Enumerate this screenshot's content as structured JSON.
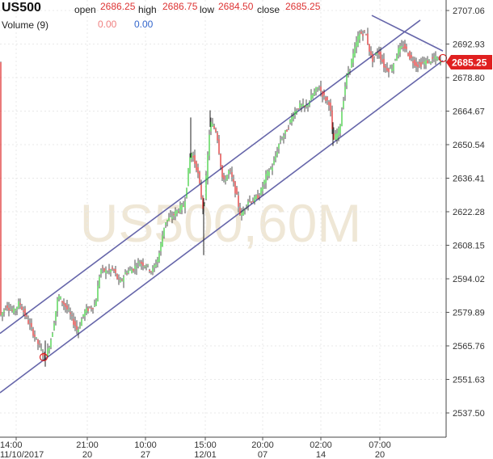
{
  "header": {
    "symbol": "US500",
    "volume_label": "Volume (9)",
    "open_label": "open",
    "open_value": "2686.25",
    "high_label": "high",
    "high_value": "2686.75",
    "low_label": "low",
    "low_value": "2684.50",
    "close_label": "close",
    "close_value": "2685.25",
    "volume_value_1": "0.00",
    "volume_value_2": "0.00"
  },
  "watermark": "US500,60M",
  "current_price_label": "2685.25",
  "colors": {
    "up": "#33cc33",
    "down": "#dd2222",
    "wick": "#222222",
    "trendline": "#6666aa",
    "price_tag": "#e02020",
    "watermark": "#efe7d6",
    "header_value": "#dd3333",
    "volume_zero": "#f08080",
    "volume_blue": "#3366cc"
  },
  "chart_data": {
    "type": "candlestick",
    "y_ticks": [
      2537.5,
      2551.63,
      2565.76,
      2579.89,
      2594.02,
      2608.15,
      2622.28,
      2636.41,
      2650.54,
      2664.67,
      2678.8,
      2692.93,
      2707.06
    ],
    "y_tick_labels": [
      "2537.50",
      "2551.63",
      "2565.76",
      "2579.89",
      "2594.02",
      "2608.15",
      "2622.28",
      "2636.41",
      "2650.54",
      "2664.67",
      "2678.80",
      "2692.93",
      "2707.06"
    ],
    "ylim": [
      2530,
      2713
    ],
    "x_ticks": [
      {
        "time": "11/10/2017 14:00",
        "label_top": "14:00",
        "label_bottom": "11/10/2017"
      },
      {
        "time": "11/20 21:00",
        "label_top": "21:00",
        "label_bottom": "20"
      },
      {
        "time": "11/27 10:00",
        "label_top": "10:00",
        "label_bottom": "27"
      },
      {
        "time": "12/01 15:00",
        "label_top": "15:00",
        "label_bottom": "12/01"
      },
      {
        "time": "12/07 20:00",
        "label_top": "20:00",
        "label_bottom": "07"
      },
      {
        "time": "12/14 02:00",
        "label_top": "02:00",
        "label_bottom": "14"
      },
      {
        "time": "12/20 07:00",
        "label_top": "07:00",
        "label_bottom": "20"
      }
    ],
    "price_path": [
      [
        0,
        2578
      ],
      [
        8,
        2583
      ],
      [
        16,
        2580
      ],
      [
        24,
        2584
      ],
      [
        32,
        2578
      ],
      [
        40,
        2572
      ],
      [
        48,
        2566
      ],
      [
        56,
        2560
      ],
      [
        64,
        2570
      ],
      [
        72,
        2587
      ],
      [
        80,
        2583
      ],
      [
        88,
        2578
      ],
      [
        96,
        2572
      ],
      [
        104,
        2580
      ],
      [
        112,
        2582
      ],
      [
        118,
        2583
      ],
      [
        124,
        2598
      ],
      [
        132,
        2597
      ],
      [
        140,
        2598
      ],
      [
        148,
        2592
      ],
      [
        156,
        2597
      ],
      [
        164,
        2598
      ],
      [
        172,
        2601
      ],
      [
        180,
        2600
      ],
      [
        188,
        2597
      ],
      [
        196,
        2603
      ],
      [
        204,
        2618
      ],
      [
        212,
        2620
      ],
      [
        220,
        2623
      ],
      [
        228,
        2625
      ],
      [
        236,
        2648
      ],
      [
        244,
        2640
      ],
      [
        252,
        2622
      ],
      [
        260,
        2660
      ],
      [
        268,
        2656
      ],
      [
        276,
        2634
      ],
      [
        284,
        2640
      ],
      [
        292,
        2630
      ],
      [
        298,
        2620
      ],
      [
        306,
        2627
      ],
      [
        314,
        2627
      ],
      [
        322,
        2630
      ],
      [
        330,
        2638
      ],
      [
        338,
        2642
      ],
      [
        346,
        2652
      ],
      [
        354,
        2656
      ],
      [
        362,
        2663
      ],
      [
        370,
        2667
      ],
      [
        378,
        2666
      ],
      [
        386,
        2671
      ],
      [
        394,
        2675
      ],
      [
        402,
        2670
      ],
      [
        408,
        2668
      ],
      [
        412,
        2652
      ],
      [
        420,
        2657
      ],
      [
        428,
        2678
      ],
      [
        436,
        2687
      ],
      [
        444,
        2697
      ],
      [
        452,
        2698
      ],
      [
        460,
        2686
      ],
      [
        468,
        2690
      ],
      [
        476,
        2683
      ],
      [
        484,
        2682
      ],
      [
        492,
        2690
      ],
      [
        500,
        2692
      ],
      [
        508,
        2687
      ],
      [
        516,
        2684
      ],
      [
        524,
        2685
      ],
      [
        532,
        2686
      ],
      [
        540,
        2687
      ],
      [
        546,
        2685.25
      ]
    ],
    "candle_range": 2.6,
    "spikes": [
      {
        "x": 236,
        "high": 2662,
        "low": 2645
      },
      {
        "x": 252,
        "high": 2628,
        "low": 2604
      },
      {
        "x": 260,
        "high": 2665,
        "low": 2658
      },
      {
        "x": 412,
        "high": 2660,
        "low": 2650
      },
      {
        "x": 56,
        "high": 2568,
        "low": 2557
      }
    ],
    "trendlines": [
      {
        "x1": 0,
        "y1": 2571,
        "x2": 520,
        "y2": 2703
      },
      {
        "x1": 0,
        "y1": 2546,
        "x2": 548,
        "y2": 2686
      },
      {
        "x1": 460,
        "y1": 2705,
        "x2": 548,
        "y2": 2690
      }
    ],
    "markers": [
      {
        "x": 54,
        "y": 2561
      },
      {
        "x": 548,
        "y": 2687
      }
    ],
    "current_price": 2685.25
  }
}
